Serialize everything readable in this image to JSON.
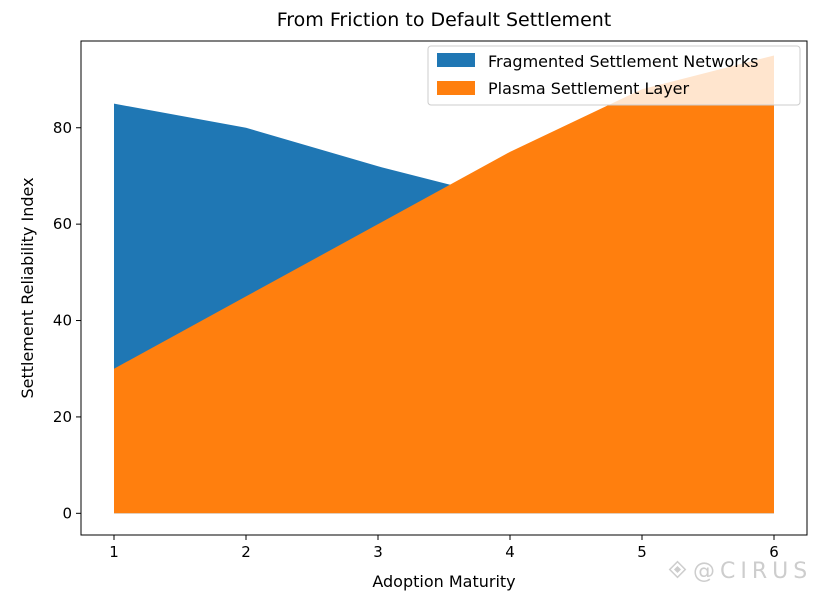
{
  "chart_data": {
    "type": "area",
    "title": "From Friction to Default Settlement",
    "xlabel": "Adoption Maturity",
    "ylabel": "Settlement Reliability Index",
    "x": [
      1,
      2,
      3,
      4,
      5,
      6
    ],
    "xlim": [
      0.75,
      6.25
    ],
    "ylim": [
      -4.5,
      98
    ],
    "xticks": [
      "1",
      "2",
      "3",
      "4",
      "5",
      "6"
    ],
    "yticks": [
      "0",
      "20",
      "40",
      "60",
      "80"
    ],
    "grid": false,
    "legend_position": "top-right",
    "series": [
      {
        "name": "Fragmented Settlement Networks",
        "values": [
          85,
          80,
          72,
          65,
          58,
          52
        ],
        "color": "#1f77b4"
      },
      {
        "name": "Plasma Settlement Layer",
        "values": [
          30,
          45,
          60,
          75,
          88,
          95
        ],
        "color": "#ff7f0e"
      }
    ]
  },
  "watermark": {
    "text": "@CIRUS"
  }
}
